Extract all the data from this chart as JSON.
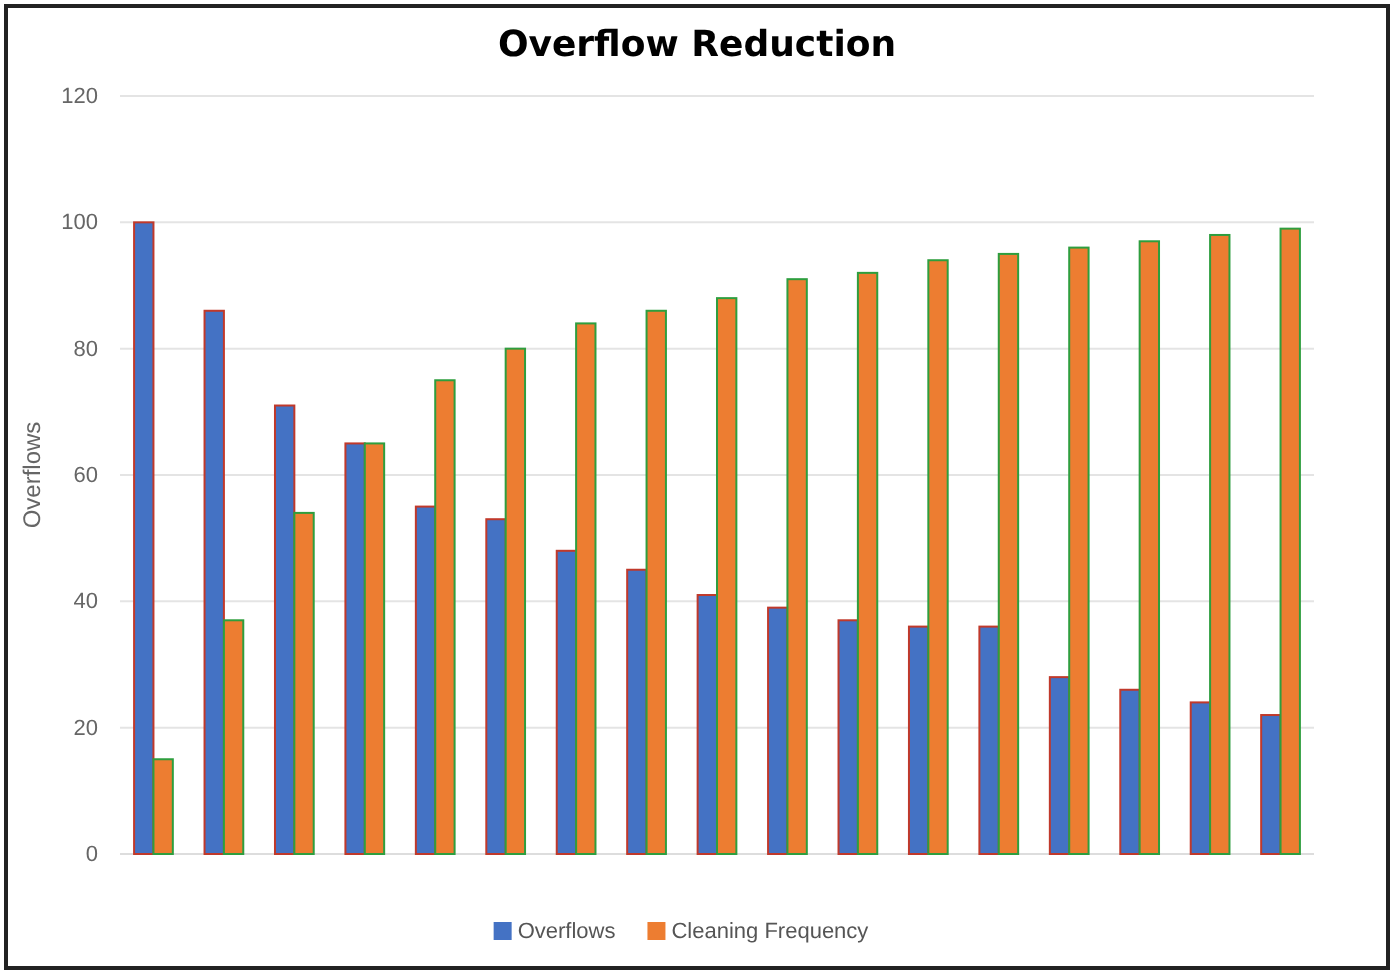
{
  "chart_data": {
    "type": "bar",
    "title": "Overflow Reduction",
    "ylabel": "Overflows",
    "categories": [
      null,
      null,
      null,
      null,
      null,
      null,
      null,
      null,
      null,
      null,
      null,
      null,
      null,
      null,
      null,
      null,
      null
    ],
    "series": [
      {
        "name": "Overflows",
        "color": "#4472c4",
        "values": [
          100,
          86,
          71,
          65,
          55,
          53,
          48,
          45,
          41,
          39,
          37,
          36,
          36,
          28,
          26,
          24,
          22
        ]
      },
      {
        "name": "Cleaning Frequency",
        "color": "#ed7d31",
        "values": [
          15,
          37,
          54,
          65,
          75,
          80,
          84,
          86,
          88,
          91,
          92,
          94,
          95,
          96,
          97,
          98,
          99
        ]
      }
    ],
    "ylim": [
      0,
      120
    ],
    "yticks": [
      0,
      20,
      40,
      60,
      80,
      100,
      120
    ],
    "grid": "y",
    "legend": "bottom"
  }
}
